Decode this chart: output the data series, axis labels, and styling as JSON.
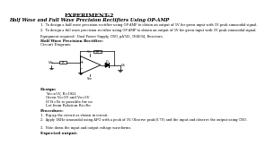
{
  "title": "EXPERIMENT-2",
  "subtitle": "Half Wave and Full Wave Precision Rectifiers Using OP-AMP",
  "aim1": "1.  To design a half wave precision rectifier using OP-AMP to obtain an output of 5V for given input with 5V peak sinusoidal signal.",
  "aim2": "2.  To design a full wave precision rectifier using OP-AMP to obtain an output of 5V for given input with 5V peak sinusoidal signal.",
  "equipment": "Equipment required:  Dual Power Supply, CRO, μA741, IN4004, Resistors.",
  "section1": "Half Wave Precision Rectifier:",
  "circuit": "Circuit Diagram:",
  "design_header": "Design:",
  "design_line1": "Vs=±5V, R=1KΩ",
  "design_line2": "Given Vi=5V and Vo=5V",
  "design_line3": "If Vi=Vo is possible for us",
  "design_line4": "Let from Relation Ri=Ro",
  "procedure_header": "Procedure:",
  "proc1": "1.  Rig up the circuit as shown in circuit.",
  "proc2": "2.  Apply 1KHz sinusoidal using AFG with a peak of 5V. Observe peak(0.7V) and the input and observe the output using CRO.",
  "proc3": "3.  Note down the input and output voltage waveforms.",
  "expected": "Expected output:",
  "bg_color": "#ffffff",
  "text_color": "#000000",
  "title_color": "#000000"
}
